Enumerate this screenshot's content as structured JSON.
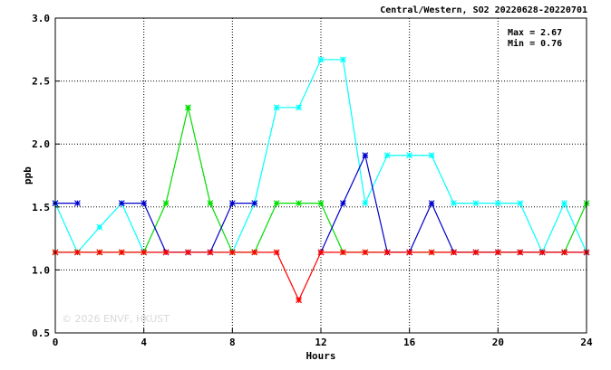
{
  "chart_data": {
    "type": "line",
    "title": "Central/Western, SO2 20220628-20220701",
    "xlabel": "Hours",
    "ylabel": "ppb",
    "xlim": [
      0,
      24
    ],
    "ylim": [
      0.5,
      3.0
    ],
    "x_ticks": [
      0,
      4,
      8,
      12,
      16,
      20,
      24
    ],
    "y_ticks": [
      0.5,
      1.0,
      1.5,
      2.0,
      2.5,
      3.0
    ],
    "x_tick_labels": [
      "0",
      "4",
      "8",
      "12",
      "16",
      "20",
      "24"
    ],
    "y_tick_labels": [
      "0.5",
      "1.0",
      "1.5",
      "2.0",
      "2.5",
      "3.0"
    ],
    "grid": true,
    "max_label": "Max = 2.67",
    "min_label": "Min = 0.76",
    "watermark": "© 2026 ENVF, HKUST",
    "x": [
      0,
      1,
      2,
      3,
      4,
      5,
      6,
      7,
      8,
      9,
      10,
      11,
      12,
      13,
      14,
      15,
      16,
      17,
      18,
      19,
      20,
      21,
      22,
      23,
      24
    ],
    "series": [
      {
        "color": "#00ffff",
        "values": [
          1.53,
          1.14,
          1.34,
          1.53,
          1.14,
          1.14,
          1.14,
          1.14,
          1.14,
          1.53,
          2.29,
          2.29,
          2.67,
          2.67,
          1.53,
          1.91,
          1.91,
          1.91,
          1.53,
          1.53,
          1.53,
          1.53,
          1.14,
          1.53,
          1.14
        ]
      },
      {
        "color": "#00dd00",
        "values": [
          1.14,
          1.14,
          1.14,
          1.14,
          1.14,
          1.53,
          2.29,
          1.53,
          1.14,
          1.14,
          1.53,
          1.53,
          1.53,
          1.14,
          1.14,
          1.14,
          1.14,
          1.14,
          1.14,
          1.14,
          1.14,
          1.14,
          1.14,
          1.14,
          1.53
        ]
      },
      {
        "color": "#0000cc",
        "values": [
          1.53,
          1.53,
          null,
          1.53,
          1.53,
          1.14,
          1.14,
          1.14,
          1.53,
          1.53,
          null,
          null,
          1.14,
          1.53,
          1.91,
          1.14,
          1.14,
          1.53,
          1.14,
          1.14,
          1.14,
          1.14,
          1.14,
          1.14,
          1.14
        ]
      },
      {
        "color": "#ff0000",
        "values": [
          1.14,
          1.14,
          1.14,
          1.14,
          1.14,
          1.14,
          1.14,
          1.14,
          1.14,
          1.14,
          1.14,
          0.76,
          1.14,
          1.14,
          1.14,
          1.14,
          1.14,
          1.14,
          1.14,
          1.14,
          1.14,
          1.14,
          1.14,
          1.14,
          1.14
        ]
      }
    ]
  }
}
